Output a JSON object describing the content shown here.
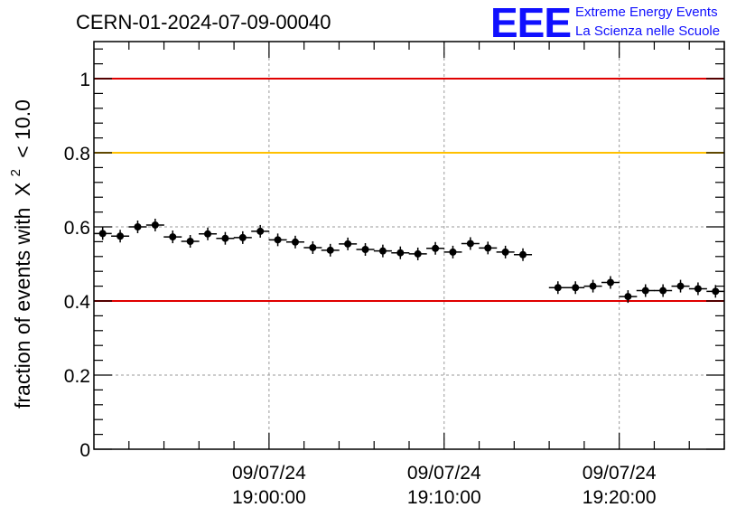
{
  "logo": {
    "letters": "EEE",
    "line1": "Extreme Energy Events",
    "line2": "La Scienza nelle Scuole",
    "color": "#1010ff"
  },
  "chart_data": {
    "type": "scatter",
    "title": "CERN-01-2024-07-09-00040",
    "ylabel": "fraction of events with",
    "ylabel_symbol": "X",
    "ylabel_exp": "2",
    "ylabel_tail": "< 10.0",
    "xlabel": "",
    "ylim": [
      0,
      1.1
    ],
    "xlim": [
      "18:50:00",
      "19:26:00"
    ],
    "yticks": [
      0,
      0.2,
      0.4,
      0.6,
      0.8,
      1
    ],
    "ytick_labels": [
      "0",
      "0.2",
      "0.4",
      "0.6",
      "0.8",
      "1"
    ],
    "xticks": [
      {
        "time": "19:00:00",
        "date": "09/07/24",
        "label": "19:00:00"
      },
      {
        "time": "19:10:00",
        "date": "09/07/24",
        "label": "19:10:00"
      },
      {
        "time": "19:20:00",
        "date": "09/07/24",
        "label": "19:20:00"
      }
    ],
    "grid": true,
    "reference_lines": [
      {
        "y": 1.0,
        "color": "#e00000"
      },
      {
        "y": 0.8,
        "color": "#ffc000"
      },
      {
        "y": 0.4,
        "color": "#e00000"
      }
    ],
    "series": [
      {
        "color": "#000000",
        "points": [
          {
            "x": "18:50:30",
            "y": 0.582
          },
          {
            "x": "18:51:30",
            "y": 0.575
          },
          {
            "x": "18:52:30",
            "y": 0.6
          },
          {
            "x": "18:53:30",
            "y": 0.605
          },
          {
            "x": "18:54:30",
            "y": 0.573
          },
          {
            "x": "18:55:30",
            "y": 0.561
          },
          {
            "x": "18:56:30",
            "y": 0.581
          },
          {
            "x": "18:57:30",
            "y": 0.569
          },
          {
            "x": "18:58:30",
            "y": 0.571
          },
          {
            "x": "18:59:30",
            "y": 0.588
          },
          {
            "x": "19:00:30",
            "y": 0.565
          },
          {
            "x": "19:01:30",
            "y": 0.559
          },
          {
            "x": "19:02:30",
            "y": 0.544
          },
          {
            "x": "19:03:30",
            "y": 0.537
          },
          {
            "x": "19:04:30",
            "y": 0.554
          },
          {
            "x": "19:05:30",
            "y": 0.539
          },
          {
            "x": "19:06:30",
            "y": 0.535
          },
          {
            "x": "19:07:30",
            "y": 0.53
          },
          {
            "x": "19:08:30",
            "y": 0.527
          },
          {
            "x": "19:09:30",
            "y": 0.542
          },
          {
            "x": "19:10:30",
            "y": 0.532
          },
          {
            "x": "19:11:30",
            "y": 0.555
          },
          {
            "x": "19:12:30",
            "y": 0.543
          },
          {
            "x": "19:13:30",
            "y": 0.532
          },
          {
            "x": "19:14:30",
            "y": 0.525
          },
          {
            "x": "19:16:30",
            "y": 0.436
          },
          {
            "x": "19:17:30",
            "y": 0.436
          },
          {
            "x": "19:18:30",
            "y": 0.44
          },
          {
            "x": "19:19:30",
            "y": 0.45
          },
          {
            "x": "19:20:30",
            "y": 0.412
          },
          {
            "x": "19:21:30",
            "y": 0.428
          },
          {
            "x": "19:22:30",
            "y": 0.428
          },
          {
            "x": "19:23:30",
            "y": 0.44
          },
          {
            "x": "19:24:30",
            "y": 0.433
          },
          {
            "x": "19:25:30",
            "y": 0.426
          }
        ]
      }
    ]
  }
}
